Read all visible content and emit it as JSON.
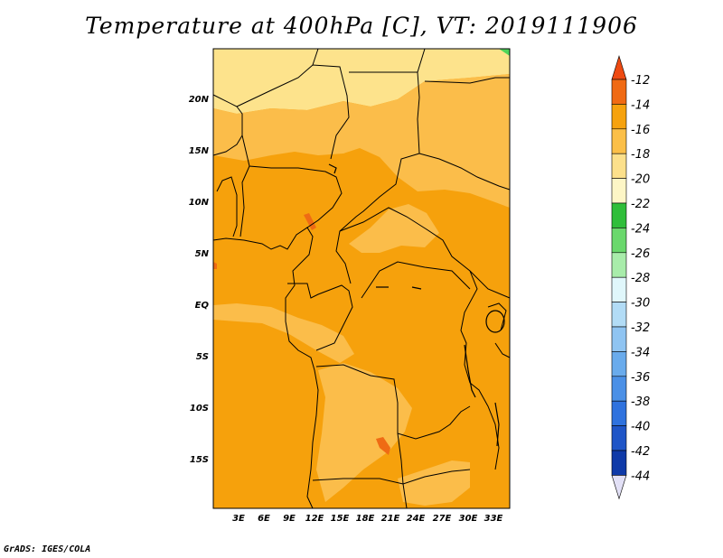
{
  "title": "Temperature at 400hPa [C], VT: 2019111906",
  "credit": "GrADS: IGES/COLA",
  "map": {
    "lat_labels": [
      "20N",
      "15N",
      "10N",
      "5N",
      "EQ",
      "5S",
      "10S",
      "15S"
    ],
    "lon_labels": [
      "3E",
      "6E",
      "9E",
      "12E",
      "15E",
      "18E",
      "21E",
      "24E",
      "27E",
      "30E",
      "33E"
    ],
    "fill_colors": {
      "minus20_to_minus18": "#fde38c",
      "minus18_to_minus16": "#fbbd4a",
      "minus16_to_minus14": "#f6a10c",
      "minus14_to_minus12": "#ef6b14",
      "minus22_to_minus20": "#4fd45a"
    }
  },
  "colorbar": {
    "labels": [
      "-12",
      "-14",
      "-16",
      "-18",
      "-20",
      "-22",
      "-24",
      "-26",
      "-28",
      "-30",
      "-32",
      "-34",
      "-36",
      "-38",
      "-40",
      "-42",
      "-44"
    ],
    "colors": [
      "#f06a13",
      "#f6a20e",
      "#fbbf48",
      "#fce08b",
      "#fdf6c6",
      "#2fbe3a",
      "#6ad86c",
      "#a8ecaa",
      "#e0f7fb",
      "#b2dcf6",
      "#8fc4f2",
      "#69abec",
      "#4b90e6",
      "#2f72de",
      "#1f55c7",
      "#0f3aa8",
      "#0b0f6e"
    ],
    "top_arrow_color": "#ee4a12",
    "bottom_arrow_color": "#e2e0f6"
  }
}
